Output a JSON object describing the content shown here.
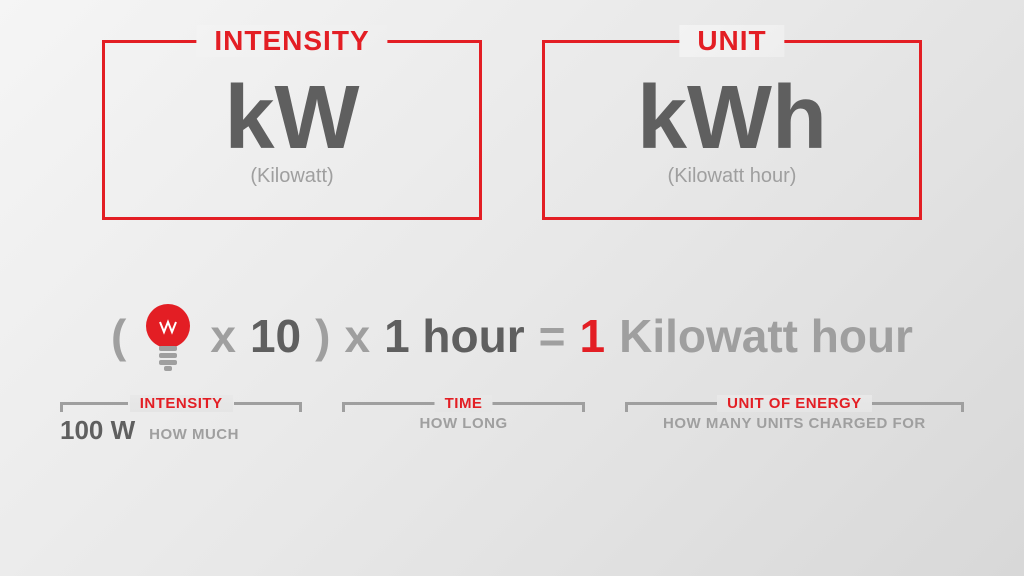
{
  "colors": {
    "red": "#e31e24",
    "gray_dark": "#5f5f5f",
    "gray_mid": "#9f9f9f",
    "gray_light": "#b8b8b8"
  },
  "boxes": [
    {
      "label": "INTENSITY",
      "main": "kW",
      "sub": "(Kilowatt)",
      "border_color": "#e31e24",
      "label_color": "#e31e24",
      "main_color": "#5f5f5f",
      "sub_color": "#9f9f9f"
    },
    {
      "label": "UNIT",
      "main": "kWh",
      "sub": "(Kilowatt hour)",
      "border_color": "#e31e24",
      "label_color": "#e31e24",
      "main_color": "#5f5f5f",
      "sub_color": "#9f9f9f"
    }
  ],
  "equation": {
    "paren_open": "(",
    "paren_close": ")",
    "times1": "x",
    "count": "10",
    "times2": "x",
    "duration": "1 hour",
    "equals": "=",
    "result_num": "1",
    "result_text": "Kilowatt hour",
    "paren_color": "#9f9f9f",
    "op_color": "#9f9f9f",
    "num_color": "#5f5f5f",
    "result_num_color": "#e31e24",
    "result_text_color": "#9f9f9f",
    "bulb_color": "#e31e24",
    "bulb_base_color": "#9f9f9f"
  },
  "brackets": [
    {
      "label": "INTENSITY",
      "big": "100 W",
      "desc": "HOW MUCH",
      "label_color": "#e31e24",
      "line_color": "#9f9f9f",
      "big_color": "#5f5f5f",
      "desc_color": "#9f9f9f"
    },
    {
      "label": "TIME",
      "big": "",
      "desc": "HOW LONG",
      "label_color": "#e31e24",
      "line_color": "#9f9f9f",
      "big_color": "#5f5f5f",
      "desc_color": "#9f9f9f"
    },
    {
      "label": "UNIT OF ENERGY",
      "big": "",
      "desc": "HOW MANY UNITS CHARGED FOR",
      "label_color": "#e31e24",
      "line_color": "#9f9f9f",
      "big_color": "#5f5f5f",
      "desc_color": "#9f9f9f"
    }
  ]
}
